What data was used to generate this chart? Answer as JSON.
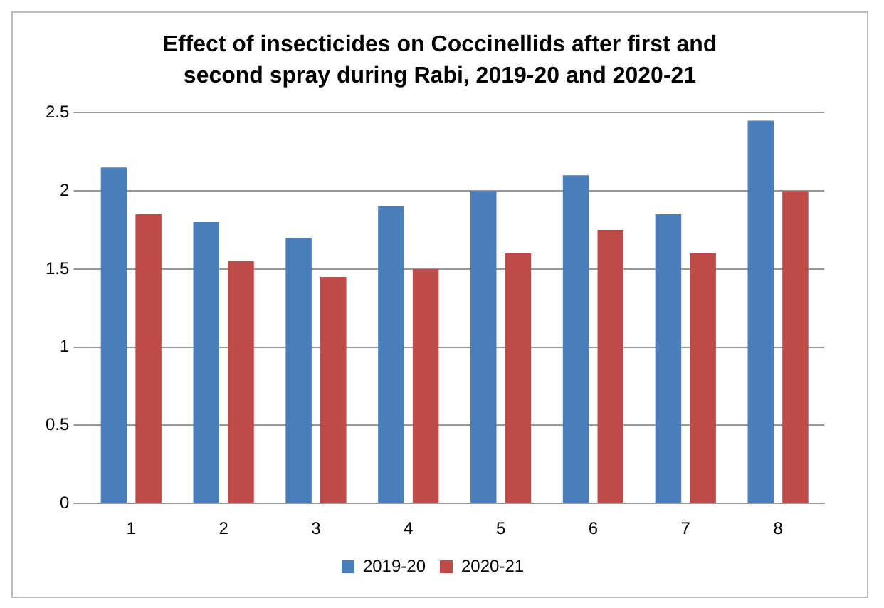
{
  "chart_data": {
    "type": "bar",
    "title": "Effect of insecticides on Coccinellids after first and second spray during Rabi, 2019-20 and 2020-21",
    "categories": [
      "1",
      "2",
      "3",
      "4",
      "5",
      "6",
      "7",
      "8"
    ],
    "series": [
      {
        "name": "2019-20",
        "color": "#4a7ebb",
        "values": [
          2.15,
          1.8,
          1.7,
          1.9,
          2.0,
          2.1,
          1.85,
          2.45
        ]
      },
      {
        "name": "2020-21",
        "color": "#be4b48",
        "values": [
          1.85,
          1.55,
          1.45,
          1.5,
          1.6,
          1.75,
          1.6,
          2.0
        ]
      }
    ],
    "ylim": [
      0,
      2.5
    ],
    "yticks": [
      0,
      0.5,
      1,
      1.5,
      2,
      2.5
    ],
    "grid": "y",
    "legend": "bottom"
  }
}
